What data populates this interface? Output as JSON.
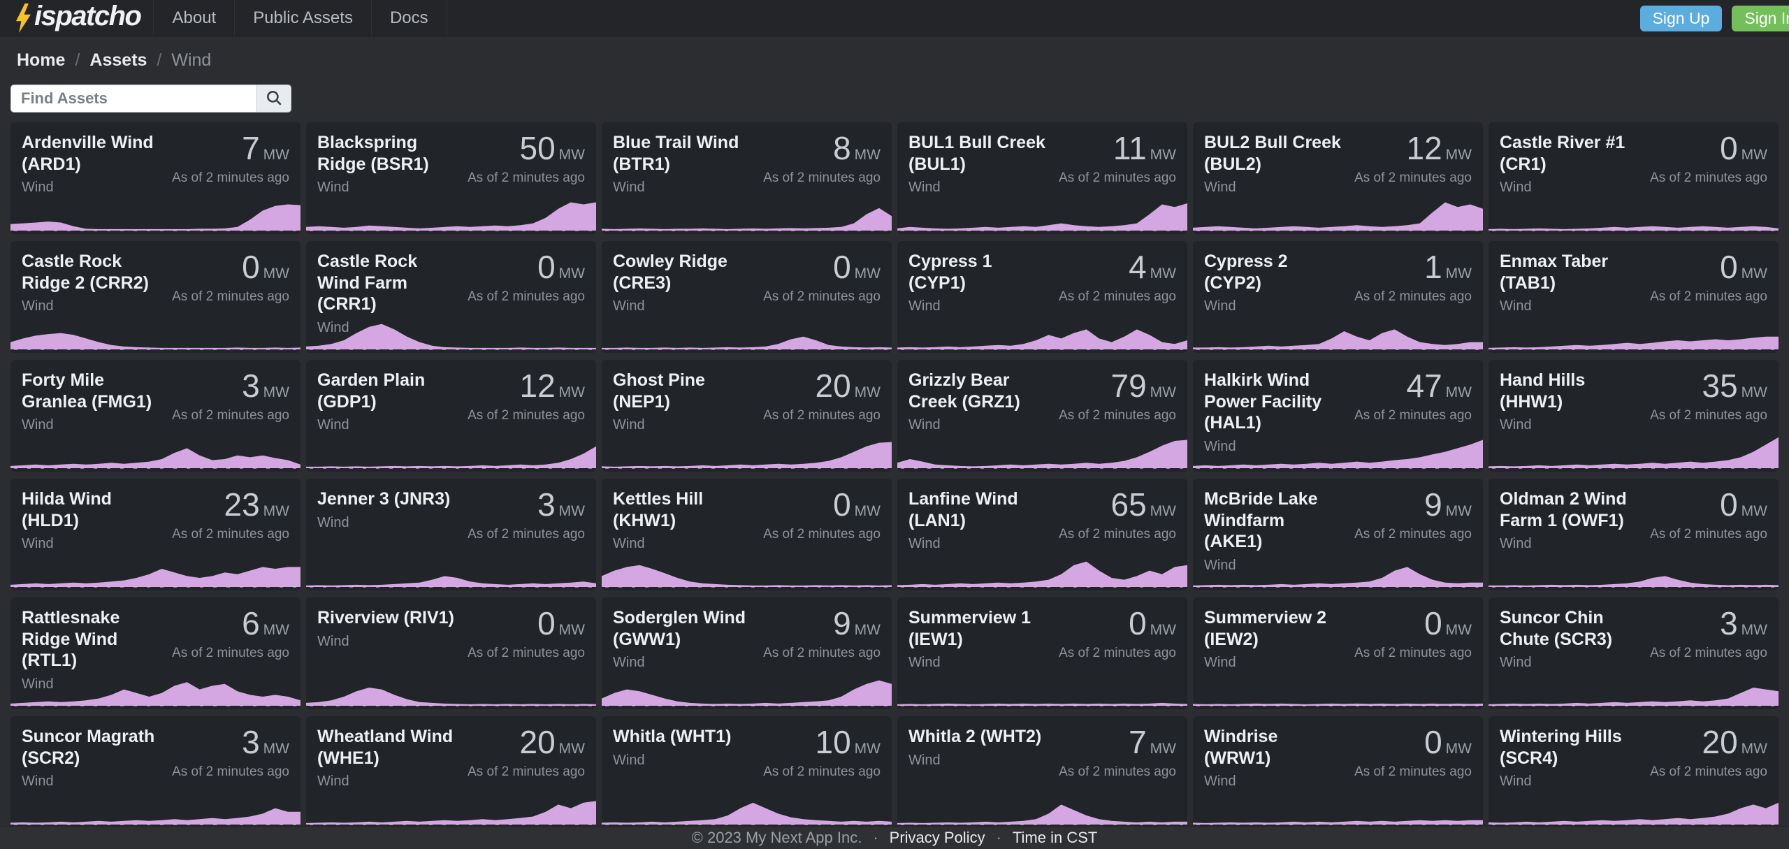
{
  "brand": {
    "name": "Dispatcho",
    "wordmark": "ispatcho",
    "bolt_color": "#f6c12f"
  },
  "navbar": {
    "links": [
      {
        "label": "About"
      },
      {
        "label": "Public Assets"
      },
      {
        "label": "Docs"
      }
    ],
    "sign_up_label": "Sign Up",
    "sign_in_label": "Sign In",
    "sign_up_color": "#5cacdf",
    "sign_in_color": "#73bf5a"
  },
  "breadcrumb": {
    "separator": "/",
    "items": [
      {
        "label": "Home",
        "current": false
      },
      {
        "label": "Assets",
        "current": false
      },
      {
        "label": "Wind",
        "current": true
      }
    ]
  },
  "search": {
    "placeholder": "Find Assets",
    "value": ""
  },
  "chart_color": "#d5a7e2",
  "assets": [
    {
      "name": "Ardenville Wind (ARD1)",
      "type": "Wind",
      "value": "7",
      "unit": "MW",
      "as_of": "As of 2 minutes ago",
      "spark": [
        0.18,
        0.2,
        0.22,
        0.25,
        0.22,
        0.12,
        0.05,
        0.04,
        0.04,
        0.04,
        0.04,
        0.04,
        0.04,
        0.04,
        0.04,
        0.05,
        0.05,
        0.06,
        0.1,
        0.3,
        0.55,
        0.68,
        0.72,
        0.7
      ]
    },
    {
      "name": "Blackspring Ridge (BSR1)",
      "type": "Wind",
      "value": "50",
      "unit": "MW",
      "as_of": "As of 2 minutes ago",
      "spark": [
        0.1,
        0.12,
        0.1,
        0.08,
        0.1,
        0.14,
        0.12,
        0.1,
        0.08,
        0.06,
        0.08,
        0.1,
        0.12,
        0.1,
        0.12,
        0.14,
        0.12,
        0.15,
        0.2,
        0.35,
        0.6,
        0.78,
        0.72,
        0.78
      ]
    },
    {
      "name": "Blue Trail Wind (BTR1)",
      "type": "Wind",
      "value": "8",
      "unit": "MW",
      "as_of": "As of 2 minutes ago",
      "spark": [
        0.05,
        0.04,
        0.05,
        0.06,
        0.05,
        0.04,
        0.05,
        0.05,
        0.06,
        0.05,
        0.04,
        0.05,
        0.06,
        0.05,
        0.06,
        0.07,
        0.06,
        0.07,
        0.08,
        0.1,
        0.2,
        0.45,
        0.62,
        0.4
      ]
    },
    {
      "name": "BUL1 Bull Creek (BUL1)",
      "type": "Wind",
      "value": "11",
      "unit": "MW",
      "as_of": "As of 2 minutes ago",
      "spark": [
        0.06,
        0.1,
        0.08,
        0.06,
        0.05,
        0.06,
        0.08,
        0.1,
        0.08,
        0.1,
        0.12,
        0.1,
        0.15,
        0.2,
        0.15,
        0.12,
        0.1,
        0.12,
        0.15,
        0.2,
        0.45,
        0.72,
        0.65,
        0.75
      ]
    },
    {
      "name": "BUL2 Bull Creek (BUL2)",
      "type": "Wind",
      "value": "12",
      "unit": "MW",
      "as_of": "As of 2 minutes ago",
      "spark": [
        0.08,
        0.1,
        0.12,
        0.1,
        0.08,
        0.06,
        0.08,
        0.1,
        0.12,
        0.1,
        0.08,
        0.1,
        0.12,
        0.15,
        0.12,
        0.1,
        0.12,
        0.15,
        0.2,
        0.5,
        0.78,
        0.65,
        0.72,
        0.6
      ]
    },
    {
      "name": "Castle River #1 (CR1)",
      "type": "Wind",
      "value": "0",
      "unit": "MW",
      "as_of": "As of 2 minutes ago",
      "spark": [
        0.04,
        0.05,
        0.04,
        0.05,
        0.06,
        0.05,
        0.04,
        0.05,
        0.06,
        0.08,
        0.1,
        0.08,
        0.1,
        0.12,
        0.1,
        0.08,
        0.1,
        0.12,
        0.1,
        0.08,
        0.1,
        0.12,
        0.1,
        0.06
      ]
    },
    {
      "name": "Castle Rock Ridge 2 (CRR2)",
      "type": "Wind",
      "value": "0",
      "unit": "MW",
      "as_of": "As of 2 minutes ago",
      "spark": [
        0.2,
        0.3,
        0.38,
        0.42,
        0.45,
        0.4,
        0.3,
        0.2,
        0.12,
        0.08,
        0.06,
        0.05,
        0.04,
        0.04,
        0.04,
        0.04,
        0.04,
        0.04,
        0.05,
        0.04,
        0.04,
        0.05,
        0.04,
        0.05
      ]
    },
    {
      "name": "Castle Rock Wind Farm (CRR1)",
      "type": "Wind",
      "value": "0",
      "unit": "MW",
      "as_of": "As of 2 minutes ago",
      "spark": [
        0.08,
        0.1,
        0.15,
        0.25,
        0.45,
        0.62,
        0.7,
        0.55,
        0.35,
        0.2,
        0.1,
        0.06,
        0.05,
        0.04,
        0.04,
        0.04,
        0.04,
        0.05,
        0.04,
        0.04,
        0.05,
        0.04,
        0.04,
        0.04
      ]
    },
    {
      "name": "Cowley Ridge (CRE3)",
      "type": "Wind",
      "value": "0",
      "unit": "MW",
      "as_of": "As of 2 minutes ago",
      "spark": [
        0.04,
        0.04,
        0.05,
        0.04,
        0.04,
        0.05,
        0.04,
        0.05,
        0.04,
        0.05,
        0.06,
        0.05,
        0.06,
        0.08,
        0.15,
        0.28,
        0.35,
        0.25,
        0.12,
        0.08,
        0.06,
        0.05,
        0.06,
        0.05
      ]
    },
    {
      "name": "Cypress 1 (CYP1)",
      "type": "Wind",
      "value": "4",
      "unit": "MW",
      "as_of": "As of 2 minutes ago",
      "spark": [
        0.05,
        0.06,
        0.05,
        0.06,
        0.08,
        0.06,
        0.08,
        0.1,
        0.12,
        0.1,
        0.15,
        0.25,
        0.4,
        0.3,
        0.45,
        0.55,
        0.3,
        0.2,
        0.35,
        0.55,
        0.4,
        0.2,
        0.15,
        0.25
      ]
    },
    {
      "name": "Cypress 2 (CYP2)",
      "type": "Wind",
      "value": "1",
      "unit": "MW",
      "as_of": "As of 2 minutes ago",
      "spark": [
        0.05,
        0.05,
        0.06,
        0.05,
        0.06,
        0.08,
        0.1,
        0.08,
        0.1,
        0.12,
        0.15,
        0.3,
        0.5,
        0.35,
        0.25,
        0.45,
        0.55,
        0.35,
        0.2,
        0.15,
        0.12,
        0.15,
        0.2,
        0.2
      ]
    },
    {
      "name": "Enmax Taber (TAB1)",
      "type": "Wind",
      "value": "0",
      "unit": "MW",
      "as_of": "As of 2 minutes ago",
      "spark": [
        0.04,
        0.05,
        0.06,
        0.05,
        0.06,
        0.08,
        0.1,
        0.12,
        0.1,
        0.12,
        0.15,
        0.18,
        0.15,
        0.18,
        0.22,
        0.25,
        0.22,
        0.25,
        0.28,
        0.25,
        0.28,
        0.32,
        0.35,
        0.35
      ]
    },
    {
      "name": "Forty Mile Granlea (FMG1)",
      "type": "Wind",
      "value": "3",
      "unit": "MW",
      "as_of": "As of 2 minutes ago",
      "spark": [
        0.06,
        0.08,
        0.1,
        0.08,
        0.1,
        0.12,
        0.1,
        0.12,
        0.15,
        0.12,
        0.15,
        0.18,
        0.25,
        0.42,
        0.55,
        0.35,
        0.22,
        0.25,
        0.35,
        0.3,
        0.35,
        0.28,
        0.22,
        0.1
      ]
    },
    {
      "name": "Garden Plain (GDP1)",
      "type": "Wind",
      "value": "12",
      "unit": "MW",
      "as_of": "As of 2 minutes ago",
      "spark": [
        0.04,
        0.04,
        0.05,
        0.04,
        0.05,
        0.04,
        0.05,
        0.06,
        0.05,
        0.06,
        0.05,
        0.06,
        0.05,
        0.06,
        0.08,
        0.06,
        0.08,
        0.1,
        0.08,
        0.1,
        0.15,
        0.25,
        0.4,
        0.6
      ]
    },
    {
      "name": "Ghost Pine (NEP1)",
      "type": "Wind",
      "value": "20",
      "unit": "MW",
      "as_of": "As of 2 minutes ago",
      "spark": [
        0.05,
        0.04,
        0.05,
        0.06,
        0.05,
        0.06,
        0.05,
        0.06,
        0.08,
        0.06,
        0.08,
        0.1,
        0.08,
        0.1,
        0.12,
        0.1,
        0.12,
        0.15,
        0.2,
        0.3,
        0.45,
        0.6,
        0.7,
        0.72
      ]
    },
    {
      "name": "Grizzly Bear Creek (GRZ1)",
      "type": "Wind",
      "value": "79",
      "unit": "MW",
      "as_of": "As of 2 minutes ago",
      "spark": [
        0.15,
        0.25,
        0.18,
        0.1,
        0.08,
        0.06,
        0.05,
        0.06,
        0.08,
        0.1,
        0.08,
        0.1,
        0.12,
        0.1,
        0.12,
        0.15,
        0.12,
        0.15,
        0.2,
        0.3,
        0.45,
        0.62,
        0.75,
        0.78
      ]
    },
    {
      "name": "Halkirk Wind Power Facility (HAL1)",
      "type": "Wind",
      "value": "47",
      "unit": "MW",
      "as_of": "As of 2 minutes ago",
      "spark": [
        0.06,
        0.08,
        0.06,
        0.08,
        0.1,
        0.08,
        0.1,
        0.12,
        0.1,
        0.12,
        0.15,
        0.12,
        0.15,
        0.18,
        0.15,
        0.18,
        0.22,
        0.25,
        0.3,
        0.38,
        0.45,
        0.55,
        0.65,
        0.78
      ]
    },
    {
      "name": "Hand Hills (HHW1)",
      "type": "Wind",
      "value": "35",
      "unit": "MW",
      "as_of": "As of 2 minutes ago",
      "spark": [
        0.05,
        0.06,
        0.05,
        0.06,
        0.08,
        0.06,
        0.08,
        0.1,
        0.08,
        0.1,
        0.12,
        0.1,
        0.12,
        0.15,
        0.12,
        0.15,
        0.18,
        0.15,
        0.18,
        0.22,
        0.3,
        0.45,
        0.65,
        0.85
      ]
    },
    {
      "name": "Hilda Wind (HLD1)",
      "type": "Wind",
      "value": "23",
      "unit": "MW",
      "as_of": "As of 2 minutes ago",
      "spark": [
        0.06,
        0.08,
        0.1,
        0.08,
        0.1,
        0.12,
        0.1,
        0.12,
        0.15,
        0.18,
        0.25,
        0.35,
        0.5,
        0.4,
        0.3,
        0.25,
        0.3,
        0.4,
        0.35,
        0.45,
        0.55,
        0.5,
        0.55,
        0.55
      ]
    },
    {
      "name": "Jenner 3 (JNR3)",
      "type": "Wind",
      "value": "3",
      "unit": "MW",
      "as_of": "As of 2 minutes ago",
      "spark": [
        0.04,
        0.05,
        0.04,
        0.05,
        0.06,
        0.05,
        0.06,
        0.08,
        0.1,
        0.12,
        0.2,
        0.3,
        0.25,
        0.15,
        0.1,
        0.08,
        0.06,
        0.08,
        0.1,
        0.08,
        0.1,
        0.12,
        0.15,
        0.1
      ]
    },
    {
      "name": "Kettles Hill (KHW1)",
      "type": "Wind",
      "value": "0",
      "unit": "MW",
      "as_of": "As of 2 minutes ago",
      "spark": [
        0.3,
        0.45,
        0.55,
        0.6,
        0.5,
        0.38,
        0.25,
        0.15,
        0.1,
        0.08,
        0.06,
        0.05,
        0.04,
        0.04,
        0.05,
        0.04,
        0.04,
        0.05,
        0.04,
        0.05,
        0.04,
        0.05,
        0.04,
        0.05
      ]
    },
    {
      "name": "Lanfine Wind (LAN1)",
      "type": "Wind",
      "value": "65",
      "unit": "MW",
      "as_of": "As of 2 minutes ago",
      "spark": [
        0.05,
        0.06,
        0.08,
        0.06,
        0.08,
        0.1,
        0.08,
        0.1,
        0.12,
        0.1,
        0.12,
        0.15,
        0.2,
        0.35,
        0.6,
        0.7,
        0.45,
        0.25,
        0.2,
        0.3,
        0.45,
        0.35,
        0.55,
        0.6
      ]
    },
    {
      "name": "McBride Lake Windfarm (AKE1)",
      "type": "Wind",
      "value": "9",
      "unit": "MW",
      "as_of": "As of 2 minutes ago",
      "spark": [
        0.04,
        0.05,
        0.06,
        0.05,
        0.06,
        0.05,
        0.06,
        0.08,
        0.06,
        0.08,
        0.1,
        0.08,
        0.1,
        0.12,
        0.15,
        0.25,
        0.45,
        0.55,
        0.35,
        0.2,
        0.12,
        0.1,
        0.12,
        0.12
      ]
    },
    {
      "name": "Oldman 2 Wind Farm 1 (OWF1)",
      "type": "Wind",
      "value": "0",
      "unit": "MW",
      "as_of": "As of 2 minutes ago",
      "spark": [
        0.04,
        0.04,
        0.05,
        0.04,
        0.05,
        0.06,
        0.05,
        0.06,
        0.05,
        0.06,
        0.08,
        0.1,
        0.15,
        0.25,
        0.3,
        0.2,
        0.12,
        0.08,
        0.06,
        0.05,
        0.06,
        0.05,
        0.06,
        0.05
      ]
    },
    {
      "name": "Rattlesnake Ridge Wind (RTL1)",
      "type": "Wind",
      "value": "6",
      "unit": "MW",
      "as_of": "As of 2 minutes ago",
      "spark": [
        0.06,
        0.08,
        0.1,
        0.12,
        0.1,
        0.12,
        0.15,
        0.2,
        0.3,
        0.45,
        0.35,
        0.25,
        0.35,
        0.55,
        0.65,
        0.45,
        0.55,
        0.6,
        0.4,
        0.3,
        0.25,
        0.3,
        0.25,
        0.15
      ]
    },
    {
      "name": "Riverview (RIV1)",
      "type": "Wind",
      "value": "0",
      "unit": "MW",
      "as_of": "As of 2 minutes ago",
      "spark": [
        0.08,
        0.1,
        0.15,
        0.25,
        0.4,
        0.5,
        0.45,
        0.3,
        0.18,
        0.1,
        0.08,
        0.06,
        0.05,
        0.04,
        0.05,
        0.04,
        0.05,
        0.04,
        0.05,
        0.04,
        0.05,
        0.04,
        0.05,
        0.04
      ]
    },
    {
      "name": "Soderglen Wind (GWW1)",
      "type": "Wind",
      "value": "9",
      "unit": "MW",
      "as_of": "As of 2 minutes ago",
      "spark": [
        0.2,
        0.35,
        0.45,
        0.4,
        0.3,
        0.2,
        0.12,
        0.08,
        0.06,
        0.05,
        0.06,
        0.05,
        0.06,
        0.08,
        0.06,
        0.08,
        0.1,
        0.12,
        0.15,
        0.25,
        0.45,
        0.6,
        0.7,
        0.6
      ]
    },
    {
      "name": "Summerview 1 (IEW1)",
      "type": "Wind",
      "value": "0",
      "unit": "MW",
      "as_of": "As of 2 minutes ago",
      "spark": [
        0.04,
        0.05,
        0.04,
        0.05,
        0.06,
        0.05,
        0.04,
        0.05,
        0.06,
        0.05,
        0.06,
        0.05,
        0.06,
        0.05,
        0.06,
        0.05,
        0.06,
        0.05,
        0.06,
        0.05,
        0.06,
        0.08,
        0.06,
        0.05
      ]
    },
    {
      "name": "Summerview 2 (IEW2)",
      "type": "Wind",
      "value": "0",
      "unit": "MW",
      "as_of": "As of 2 minutes ago",
      "spark": [
        0.05,
        0.04,
        0.05,
        0.04,
        0.05,
        0.06,
        0.05,
        0.06,
        0.05,
        0.04,
        0.05,
        0.06,
        0.05,
        0.06,
        0.05,
        0.06,
        0.05,
        0.06,
        0.05,
        0.06,
        0.05,
        0.06,
        0.05,
        0.06
      ]
    },
    {
      "name": "Suncor Chin Chute (SCR3)",
      "type": "Wind",
      "value": "3",
      "unit": "MW",
      "as_of": "As of 2 minutes ago",
      "spark": [
        0.04,
        0.05,
        0.06,
        0.05,
        0.06,
        0.05,
        0.06,
        0.08,
        0.06,
        0.08,
        0.1,
        0.08,
        0.1,
        0.12,
        0.1,
        0.12,
        0.15,
        0.12,
        0.15,
        0.2,
        0.35,
        0.5,
        0.45,
        0.4
      ]
    },
    {
      "name": "Suncor Magrath (SCR2)",
      "type": "Wind",
      "value": "3",
      "unit": "MW",
      "as_of": "As of 2 minutes ago",
      "spark": [
        0.05,
        0.06,
        0.05,
        0.06,
        0.08,
        0.06,
        0.08,
        0.1,
        0.08,
        0.1,
        0.12,
        0.1,
        0.12,
        0.15,
        0.12,
        0.15,
        0.18,
        0.15,
        0.18,
        0.22,
        0.3,
        0.45,
        0.35,
        0.35
      ]
    },
    {
      "name": "Wheatland Wind (WHE1)",
      "type": "Wind",
      "value": "20",
      "unit": "MW",
      "as_of": "As of 2 minutes ago",
      "spark": [
        0.04,
        0.05,
        0.06,
        0.05,
        0.06,
        0.08,
        0.06,
        0.08,
        0.1,
        0.08,
        0.1,
        0.12,
        0.1,
        0.12,
        0.15,
        0.12,
        0.15,
        0.18,
        0.22,
        0.35,
        0.55,
        0.45,
        0.6,
        0.65
      ]
    },
    {
      "name": "Whitla (WHT1)",
      "type": "Wind",
      "value": "10",
      "unit": "MW",
      "as_of": "As of 2 minutes ago",
      "spark": [
        0.05,
        0.06,
        0.05,
        0.06,
        0.08,
        0.06,
        0.08,
        0.1,
        0.12,
        0.15,
        0.25,
        0.45,
        0.6,
        0.45,
        0.3,
        0.2,
        0.15,
        0.12,
        0.1,
        0.08,
        0.1,
        0.08,
        0.1,
        0.08
      ]
    },
    {
      "name": "Whitla 2 (WHT2)",
      "type": "Wind",
      "value": "7",
      "unit": "MW",
      "as_of": "As of 2 minutes ago",
      "spark": [
        0.04,
        0.05,
        0.04,
        0.05,
        0.06,
        0.05,
        0.06,
        0.08,
        0.06,
        0.08,
        0.1,
        0.15,
        0.3,
        0.55,
        0.4,
        0.25,
        0.15,
        0.1,
        0.08,
        0.06,
        0.08,
        0.06,
        0.08,
        0.08
      ]
    },
    {
      "name": "Windrise (WRW1)",
      "type": "Wind",
      "value": "0",
      "unit": "MW",
      "as_of": "As of 2 minutes ago",
      "spark": [
        0.05,
        0.04,
        0.05,
        0.06,
        0.05,
        0.06,
        0.05,
        0.06,
        0.08,
        0.06,
        0.08,
        0.06,
        0.08,
        0.1,
        0.08,
        0.1,
        0.08,
        0.1,
        0.12,
        0.1,
        0.12,
        0.1,
        0.12,
        0.12
      ]
    },
    {
      "name": "Wintering Hills (SCR4)",
      "type": "Wind",
      "value": "20",
      "unit": "MW",
      "as_of": "As of 2 minutes ago",
      "spark": [
        0.06,
        0.05,
        0.06,
        0.08,
        0.06,
        0.08,
        0.1,
        0.08,
        0.1,
        0.12,
        0.1,
        0.12,
        0.15,
        0.12,
        0.15,
        0.18,
        0.15,
        0.18,
        0.22,
        0.3,
        0.45,
        0.55,
        0.45,
        0.6
      ]
    }
  ],
  "footer": {
    "copyright": "© 2023 My Next App Inc.",
    "separator": "·",
    "privacy_label": "Privacy Policy",
    "timezone_label": "Time in CST"
  }
}
